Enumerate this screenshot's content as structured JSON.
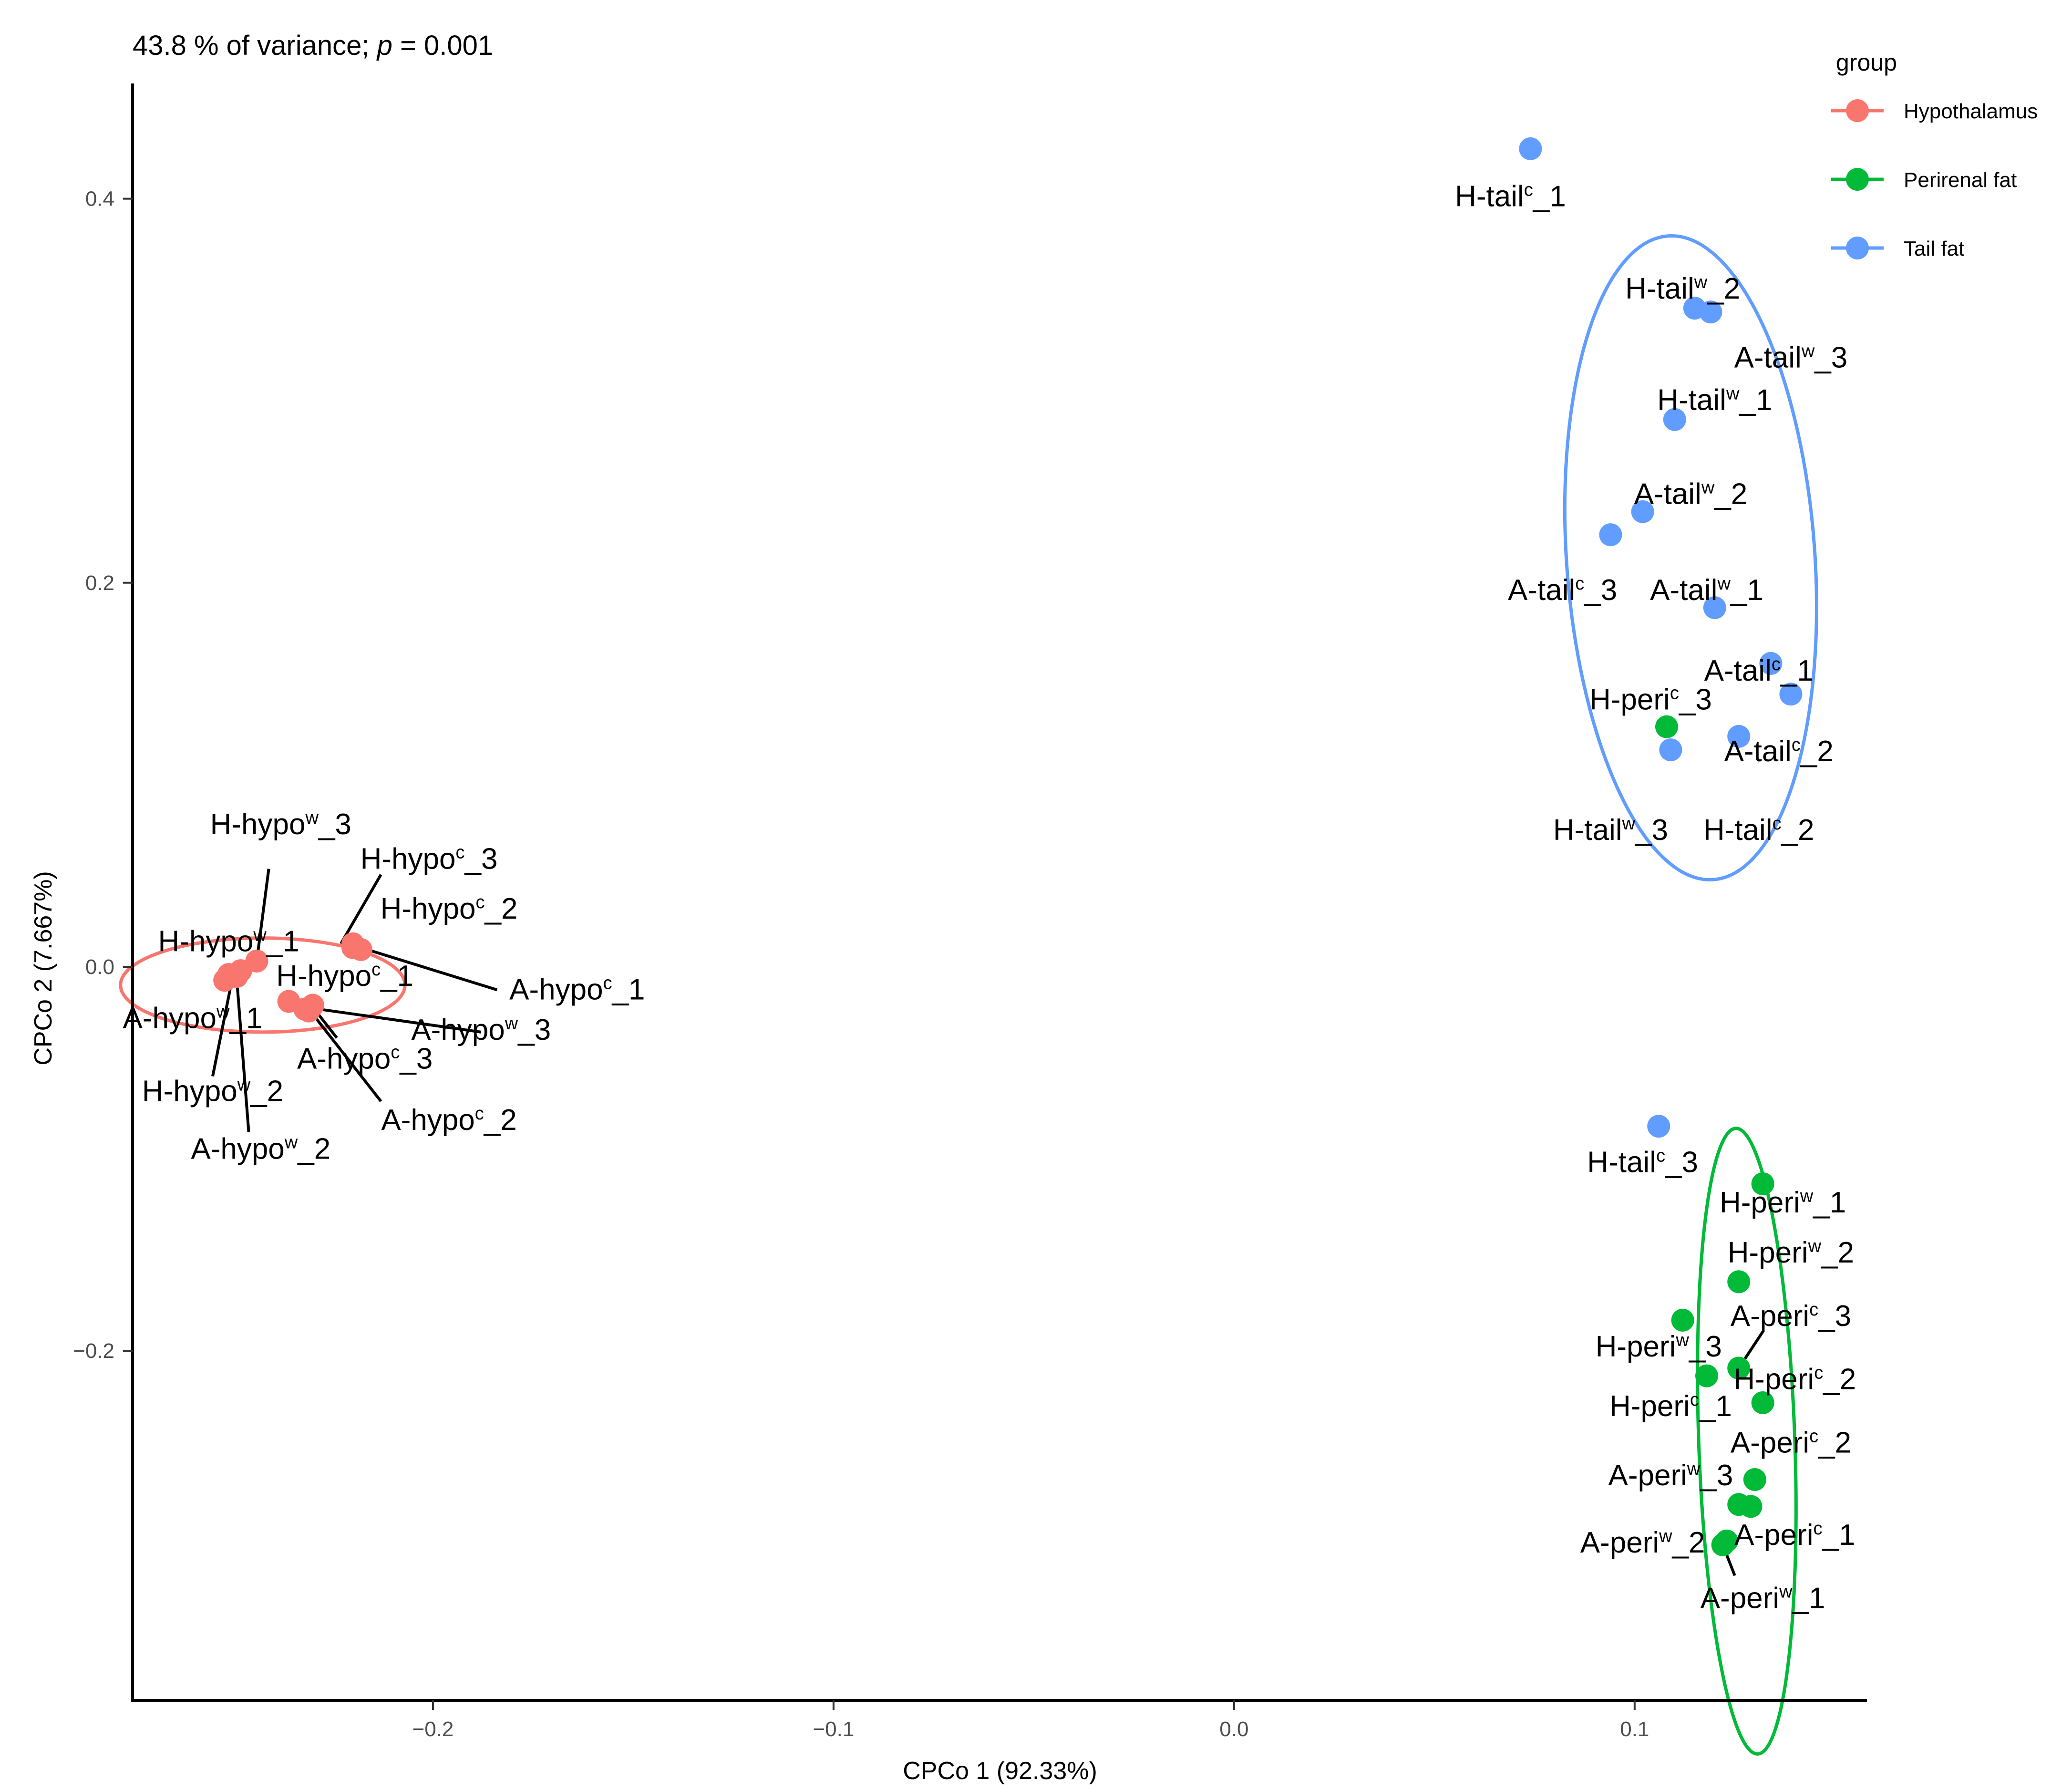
{
  "chart_data": {
    "type": "scatter",
    "subtitle_prefix": "43.8 % of variance; ",
    "subtitle_p": "p",
    "subtitle_suffix": " = 0.001",
    "xlabel": "CPCo 1 (92.33%)",
    "ylabel": "CPCo 2 (7.667%)",
    "xlim": [
      -0.275,
      0.158
    ],
    "ylim": [
      -0.382,
      0.46
    ],
    "x_ticks": [
      -0.2,
      -0.1,
      0.0,
      0.1
    ],
    "x_tick_labels": [
      "−0.2",
      "−0.1",
      "0.0",
      "0.1"
    ],
    "y_ticks": [
      -0.2,
      0.0,
      0.2,
      0.4
    ],
    "y_tick_labels": [
      "−0.2",
      "0.0",
      "0.2",
      "0.4"
    ],
    "legend": {
      "title": "group",
      "position": "top-right",
      "entries": [
        {
          "label": "Hypothalamus",
          "color": "#F8766D"
        },
        {
          "label": "Perirenal fat",
          "color": "#00BA38"
        },
        {
          "label": "Tail fat",
          "color": "#619CFF"
        }
      ]
    },
    "series": [
      {
        "name": "Hypothalamus",
        "color": "#F8766D",
        "ellipse": {
          "cx": -0.2425,
          "cy": -0.0095,
          "rx": 0.0355,
          "ry": 0.0245,
          "angle_deg": 0
        },
        "points": [
          {
            "label": "H-hypo",
            "sup": "w",
            "idx": "_3",
            "x": -0.244,
            "y": 0.003,
            "lx": -0.238,
            "ly": 0.074
          },
          {
            "label": "H-hypo",
            "sup": "c",
            "idx": "_3",
            "x": -0.22,
            "y": 0.012,
            "lx": -0.201,
            "ly": 0.056
          },
          {
            "label": "H-hypo",
            "sup": "c",
            "idx": "_2",
            "x": -0.22,
            "y": 0.01,
            "lx": -0.196,
            "ly": 0.03
          },
          {
            "label": "H-hypo",
            "sup": "w",
            "idx": "_1",
            "x": -0.248,
            "y": -0.002,
            "lx": -0.251,
            "ly": 0.013
          },
          {
            "label": "A-hypo",
            "sup": "c",
            "idx": "_1",
            "x": -0.218,
            "y": 0.009,
            "lx": -0.164,
            "ly": -0.012
          },
          {
            "label": "H-hypo",
            "sup": "c",
            "idx": "_1",
            "x": -0.236,
            "y": -0.018,
            "lx": -0.222,
            "ly": -0.005
          },
          {
            "label": "A-hypo",
            "sup": "w",
            "idx": "_1",
            "x": -0.251,
            "y": -0.004,
            "lx": -0.26,
            "ly": -0.027
          },
          {
            "label": "A-hypo",
            "sup": "w",
            "idx": "_3",
            "x": -0.231,
            "y": -0.023,
            "lx": -0.188,
            "ly": -0.033
          },
          {
            "label": "A-hypo",
            "sup": "c",
            "idx": "_3",
            "x": -0.23,
            "y": -0.02,
            "lx": -0.217,
            "ly": -0.048
          },
          {
            "label": "A-hypo",
            "sup": "c",
            "idx": "_2",
            "x": -0.232,
            "y": -0.022,
            "lx": -0.196,
            "ly": -0.08
          },
          {
            "label": "H-hypo",
            "sup": "w",
            "idx": "_2",
            "x": -0.252,
            "y": -0.007,
            "lx": -0.255,
            "ly": -0.065
          },
          {
            "label": "A-hypo",
            "sup": "w",
            "idx": "_2",
            "x": -0.249,
            "y": -0.005,
            "lx": -0.243,
            "ly": -0.095
          }
        ]
      },
      {
        "name": "Perirenal fat",
        "color": "#00BA38",
        "ellipse": {
          "cx": 0.128,
          "cy": -0.247,
          "rx": 0.012,
          "ry": 0.163,
          "angle_deg": -2
        },
        "points": [
          {
            "label": "H-peri",
            "sup": "c",
            "idx": "_3",
            "x": 0.108,
            "y": 0.125,
            "lx": 0.104,
            "ly": 0.139
          },
          {
            "label": "H-peri",
            "sup": "w",
            "idx": "_1",
            "x": 0.132,
            "y": -0.113,
            "lx": 0.137,
            "ly": -0.123
          },
          {
            "label": "H-peri",
            "sup": "w",
            "idx": "_2",
            "x": 0.126,
            "y": -0.164,
            "lx": 0.139,
            "ly": -0.149
          },
          {
            "label": "A-peri",
            "sup": "c",
            "idx": "_3",
            "x": 0.126,
            "y": -0.209,
            "lx": 0.139,
            "ly": -0.182
          },
          {
            "label": "H-peri",
            "sup": "w",
            "idx": "_3",
            "x": 0.112,
            "y": -0.184,
            "lx": 0.106,
            "ly": -0.198
          },
          {
            "label": "H-peri",
            "sup": "c",
            "idx": "_2",
            "x": 0.132,
            "y": -0.227,
            "lx": 0.14,
            "ly": -0.215
          },
          {
            "label": "H-peri",
            "sup": "c",
            "idx": "_1",
            "x": 0.118,
            "y": -0.213,
            "lx": 0.109,
            "ly": -0.229
          },
          {
            "label": "A-peri",
            "sup": "c",
            "idx": "_2",
            "x": 0.13,
            "y": -0.267,
            "lx": 0.139,
            "ly": -0.248
          },
          {
            "label": "A-peri",
            "sup": "w",
            "idx": "_3",
            "x": 0.126,
            "y": -0.28,
            "lx": 0.109,
            "ly": -0.265
          },
          {
            "label": "A-peri",
            "sup": "c",
            "idx": "_1",
            "x": 0.129,
            "y": -0.281,
            "lx": 0.14,
            "ly": -0.296
          },
          {
            "label": "A-peri",
            "sup": "w",
            "idx": "_2",
            "x": 0.122,
            "y": -0.301,
            "lx": 0.102,
            "ly": -0.3
          },
          {
            "label": "A-peri",
            "sup": "w",
            "idx": "_1",
            "x": 0.123,
            "y": -0.299,
            "lx": 0.132,
            "ly": -0.329
          }
        ]
      },
      {
        "name": "Tail fat",
        "color": "#619CFF",
        "ellipse": {
          "cx": 0.114,
          "cy": 0.213,
          "rx": 0.031,
          "ry": 0.168,
          "angle_deg": -4
        },
        "points": [
          {
            "label": "H-tail",
            "sup": "c",
            "idx": "_1",
            "x": 0.074,
            "y": 0.426,
            "lx": 0.069,
            "ly": 0.401
          },
          {
            "label": "H-tail",
            "sup": "w",
            "idx": "_2",
            "x": 0.115,
            "y": 0.343,
            "lx": 0.112,
            "ly": 0.353
          },
          {
            "label": "A-tail",
            "sup": "w",
            "idx": "_3",
            "x": 0.119,
            "y": 0.341,
            "lx": 0.139,
            "ly": 0.317
          },
          {
            "label": "H-tail",
            "sup": "w",
            "idx": "_1",
            "x": 0.11,
            "y": 0.285,
            "lx": 0.12,
            "ly": 0.295
          },
          {
            "label": "A-tail",
            "sup": "w",
            "idx": "_2",
            "x": 0.102,
            "y": 0.237,
            "lx": 0.114,
            "ly": 0.246
          },
          {
            "label": "A-tail",
            "sup": "c",
            "idx": "_3",
            "x": 0.094,
            "y": 0.225,
            "lx": 0.082,
            "ly": 0.196
          },
          {
            "label": "A-tail",
            "sup": "w",
            "idx": "_1",
            "x": 0.12,
            "y": 0.187,
            "lx": 0.118,
            "ly": 0.196
          },
          {
            "label": "A-tail",
            "sup": "c",
            "idx": "_1",
            "x": 0.134,
            "y": 0.158,
            "lx": 0.131,
            "ly": 0.154
          },
          {
            "label": "A-tail",
            "sup": "c",
            "idx": "_2",
            "x": 0.139,
            "y": 0.142,
            "lx": 0.136,
            "ly": 0.112
          },
          {
            "label": "H-tail",
            "sup": "w",
            "idx": "_3",
            "x": 0.109,
            "y": 0.113,
            "lx": 0.094,
            "ly": 0.071
          },
          {
            "label": "H-tail",
            "sup": "c",
            "idx": "_2",
            "x": 0.126,
            "y": 0.12,
            "lx": 0.131,
            "ly": 0.071
          },
          {
            "label": "H-tail",
            "sup": "c",
            "idx": "_3",
            "x": 0.106,
            "y": -0.083,
            "lx": 0.102,
            "ly": -0.102
          }
        ]
      }
    ],
    "leader_lines": [
      {
        "from": [
          -0.244,
          0.003
        ],
        "to": [
          -0.241,
          0.051
        ]
      },
      {
        "from": [
          -0.223,
          0.012
        ],
        "to": [
          -0.213,
          0.048
        ]
      },
      {
        "from": [
          -0.218,
          0.01
        ],
        "to": [
          -0.184,
          -0.012
        ]
      },
      {
        "from": [
          -0.232,
          -0.021
        ],
        "to": [
          -0.188,
          -0.034
        ]
      },
      {
        "from": [
          -0.231,
          -0.022
        ],
        "to": [
          -0.213,
          -0.07
        ]
      },
      {
        "from": [
          -0.23,
          -0.021
        ],
        "to": [
          -0.224,
          -0.037
        ]
      },
      {
        "from": [
          -0.25,
          -0.005
        ],
        "to": [
          -0.255,
          -0.057
        ]
      },
      {
        "from": [
          -0.249,
          -0.006
        ],
        "to": [
          -0.246,
          -0.086
        ]
      },
      {
        "from": [
          0.126,
          -0.209
        ],
        "to": [
          0.132,
          -0.19
        ]
      },
      {
        "from": [
          0.122,
          -0.301
        ],
        "to": [
          0.125,
          -0.317
        ]
      }
    ]
  }
}
